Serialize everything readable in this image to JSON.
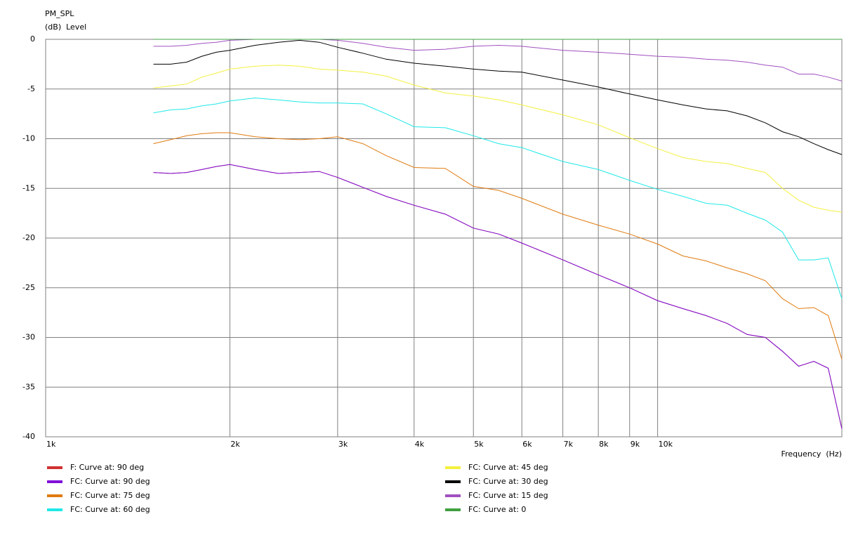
{
  "chart_data": {
    "type": "line",
    "title": "PM_SPL",
    "y_label": "(dB)  Level",
    "x_label": "Frequency  (Hz)",
    "log_x": true,
    "grid": true,
    "legend": "bottom",
    "xlim": [
      1000,
      20000
    ],
    "ylim": [
      -40,
      0
    ],
    "xticks": [
      {
        "value": 1000,
        "label": "1k"
      },
      {
        "value": 2000,
        "label": "2k"
      },
      {
        "value": 3000,
        "label": "3k"
      },
      {
        "value": 4000,
        "label": "4k"
      },
      {
        "value": 5000,
        "label": "5k"
      },
      {
        "value": 6000,
        "label": "6k"
      },
      {
        "value": 7000,
        "label": "7k"
      },
      {
        "value": 8000,
        "label": "8k"
      },
      {
        "value": 9000,
        "label": "9k"
      },
      {
        "value": 10000,
        "label": "10k"
      }
    ],
    "yticks": [
      0,
      -5,
      -10,
      -15,
      -20,
      -25,
      -30,
      -35,
      -40
    ],
    "x": [
      1500,
      1600,
      1700,
      1800,
      1900,
      2000,
      2200,
      2400,
      2600,
      2800,
      3000,
      3300,
      3600,
      4000,
      4500,
      5000,
      5500,
      6000,
      7000,
      8000,
      9000,
      10000,
      11000,
      12000,
      13000,
      14000,
      15000,
      16000,
      17000,
      18000,
      19000,
      20000
    ],
    "series": [
      {
        "name": "F: Curve at: 90 deg",
        "color": "#d03030",
        "values": [
          -13.4,
          -13.5,
          -13.4,
          -13.1,
          -12.8,
          -12.6,
          -13.1,
          -13.5,
          -13.4,
          -13.3,
          -13.9,
          -14.9,
          -15.8,
          -16.7,
          -17.6,
          -19.0,
          -19.6,
          -20.5,
          -22.2,
          -23.7,
          -25.0,
          -26.3,
          -27.1,
          -27.8,
          -28.6,
          -29.7,
          -30.0,
          -31.4,
          -32.9,
          -32.4,
          -33.1,
          -39.2
        ]
      },
      {
        "name": "FC: Curve at: 90 deg",
        "color": "#7f10d8",
        "values": [
          -13.4,
          -13.5,
          -13.4,
          -13.1,
          -12.8,
          -12.6,
          -13.1,
          -13.5,
          -13.4,
          -13.3,
          -13.9,
          -14.9,
          -15.8,
          -16.7,
          -17.6,
          -19.0,
          -19.6,
          -20.5,
          -22.2,
          -23.7,
          -25.0,
          -26.3,
          -27.1,
          -27.8,
          -28.6,
          -29.7,
          -30.0,
          -31.4,
          -32.9,
          -32.4,
          -33.1,
          -39.2
        ]
      },
      {
        "name": "FC: Curve at: 75 deg",
        "color": "#e07b10",
        "values": [
          -10.5,
          -10.1,
          -9.7,
          -9.5,
          -9.4,
          -9.4,
          -9.8,
          -10.0,
          -10.1,
          -10.0,
          -9.8,
          -10.5,
          -11.7,
          -12.9,
          -13.0,
          -14.8,
          -15.2,
          -16.0,
          -17.6,
          -18.7,
          -19.6,
          -20.6,
          -21.8,
          -22.3,
          -23.0,
          -23.6,
          -24.3,
          -26.1,
          -27.1,
          -27.0,
          -27.8,
          -32.2
        ]
      },
      {
        "name": "FC: Curve at: 60 deg",
        "color": "#20e8e8",
        "values": [
          -7.4,
          -7.1,
          -7.0,
          -6.7,
          -6.5,
          -6.2,
          -5.9,
          -6.1,
          -6.3,
          -6.4,
          -6.4,
          -6.5,
          -7.5,
          -8.8,
          -8.9,
          -9.7,
          -10.5,
          -10.9,
          -12.3,
          -13.1,
          -14.2,
          -15.1,
          -15.8,
          -16.5,
          -16.7,
          -17.5,
          -18.2,
          -19.4,
          -22.2,
          -22.2,
          -22.0,
          -26.1
        ]
      },
      {
        "name": "FC: Curve at: 45 deg",
        "color": "#f4f040",
        "values": [
          -4.9,
          -4.7,
          -4.5,
          -3.8,
          -3.4,
          -3.0,
          -2.7,
          -2.6,
          -2.7,
          -3.0,
          -3.1,
          -3.3,
          -3.7,
          -4.6,
          -5.4,
          -5.7,
          -6.1,
          -6.6,
          -7.6,
          -8.6,
          -9.9,
          -11.0,
          -11.9,
          -12.3,
          -12.5,
          -13.0,
          -13.4,
          -15.0,
          -16.2,
          -16.9,
          -17.2,
          -17.4
        ]
      },
      {
        "name": "FC: Curve at: 30 deg",
        "color": "#000000",
        "values": [
          -2.5,
          -2.5,
          -2.3,
          -1.7,
          -1.3,
          -1.1,
          -0.6,
          -0.3,
          -0.1,
          -0.3,
          -0.8,
          -1.4,
          -2.0,
          -2.4,
          -2.7,
          -3.0,
          -3.2,
          -3.3,
          -4.1,
          -4.8,
          -5.5,
          -6.1,
          -6.6,
          -7.0,
          -7.2,
          -7.7,
          -8.4,
          -9.3,
          -9.8,
          -10.5,
          -11.1,
          -11.6
        ]
      },
      {
        "name": "FC: Curve at: 15 deg",
        "color": "#a050c0",
        "values": [
          -0.7,
          -0.7,
          -0.6,
          -0.4,
          -0.3,
          -0.1,
          0,
          0,
          0,
          0,
          -0.1,
          -0.4,
          -0.8,
          -1.1,
          -1.0,
          -0.7,
          -0.6,
          -0.7,
          -1.1,
          -1.3,
          -1.5,
          -1.7,
          -1.8,
          -2.0,
          -2.1,
          -2.3,
          -2.6,
          -2.8,
          -3.5,
          -3.5,
          -3.8,
          -4.2
        ]
      },
      {
        "name": "FC: Curve at: 0",
        "color": "#40a040",
        "values": [
          0,
          0,
          0,
          0,
          0,
          0,
          0,
          0,
          0,
          0,
          0,
          0,
          0,
          0,
          0,
          0,
          0,
          0,
          0,
          0,
          0,
          0,
          0,
          0,
          0,
          0,
          0,
          0,
          0,
          0,
          0,
          0
        ]
      }
    ]
  }
}
